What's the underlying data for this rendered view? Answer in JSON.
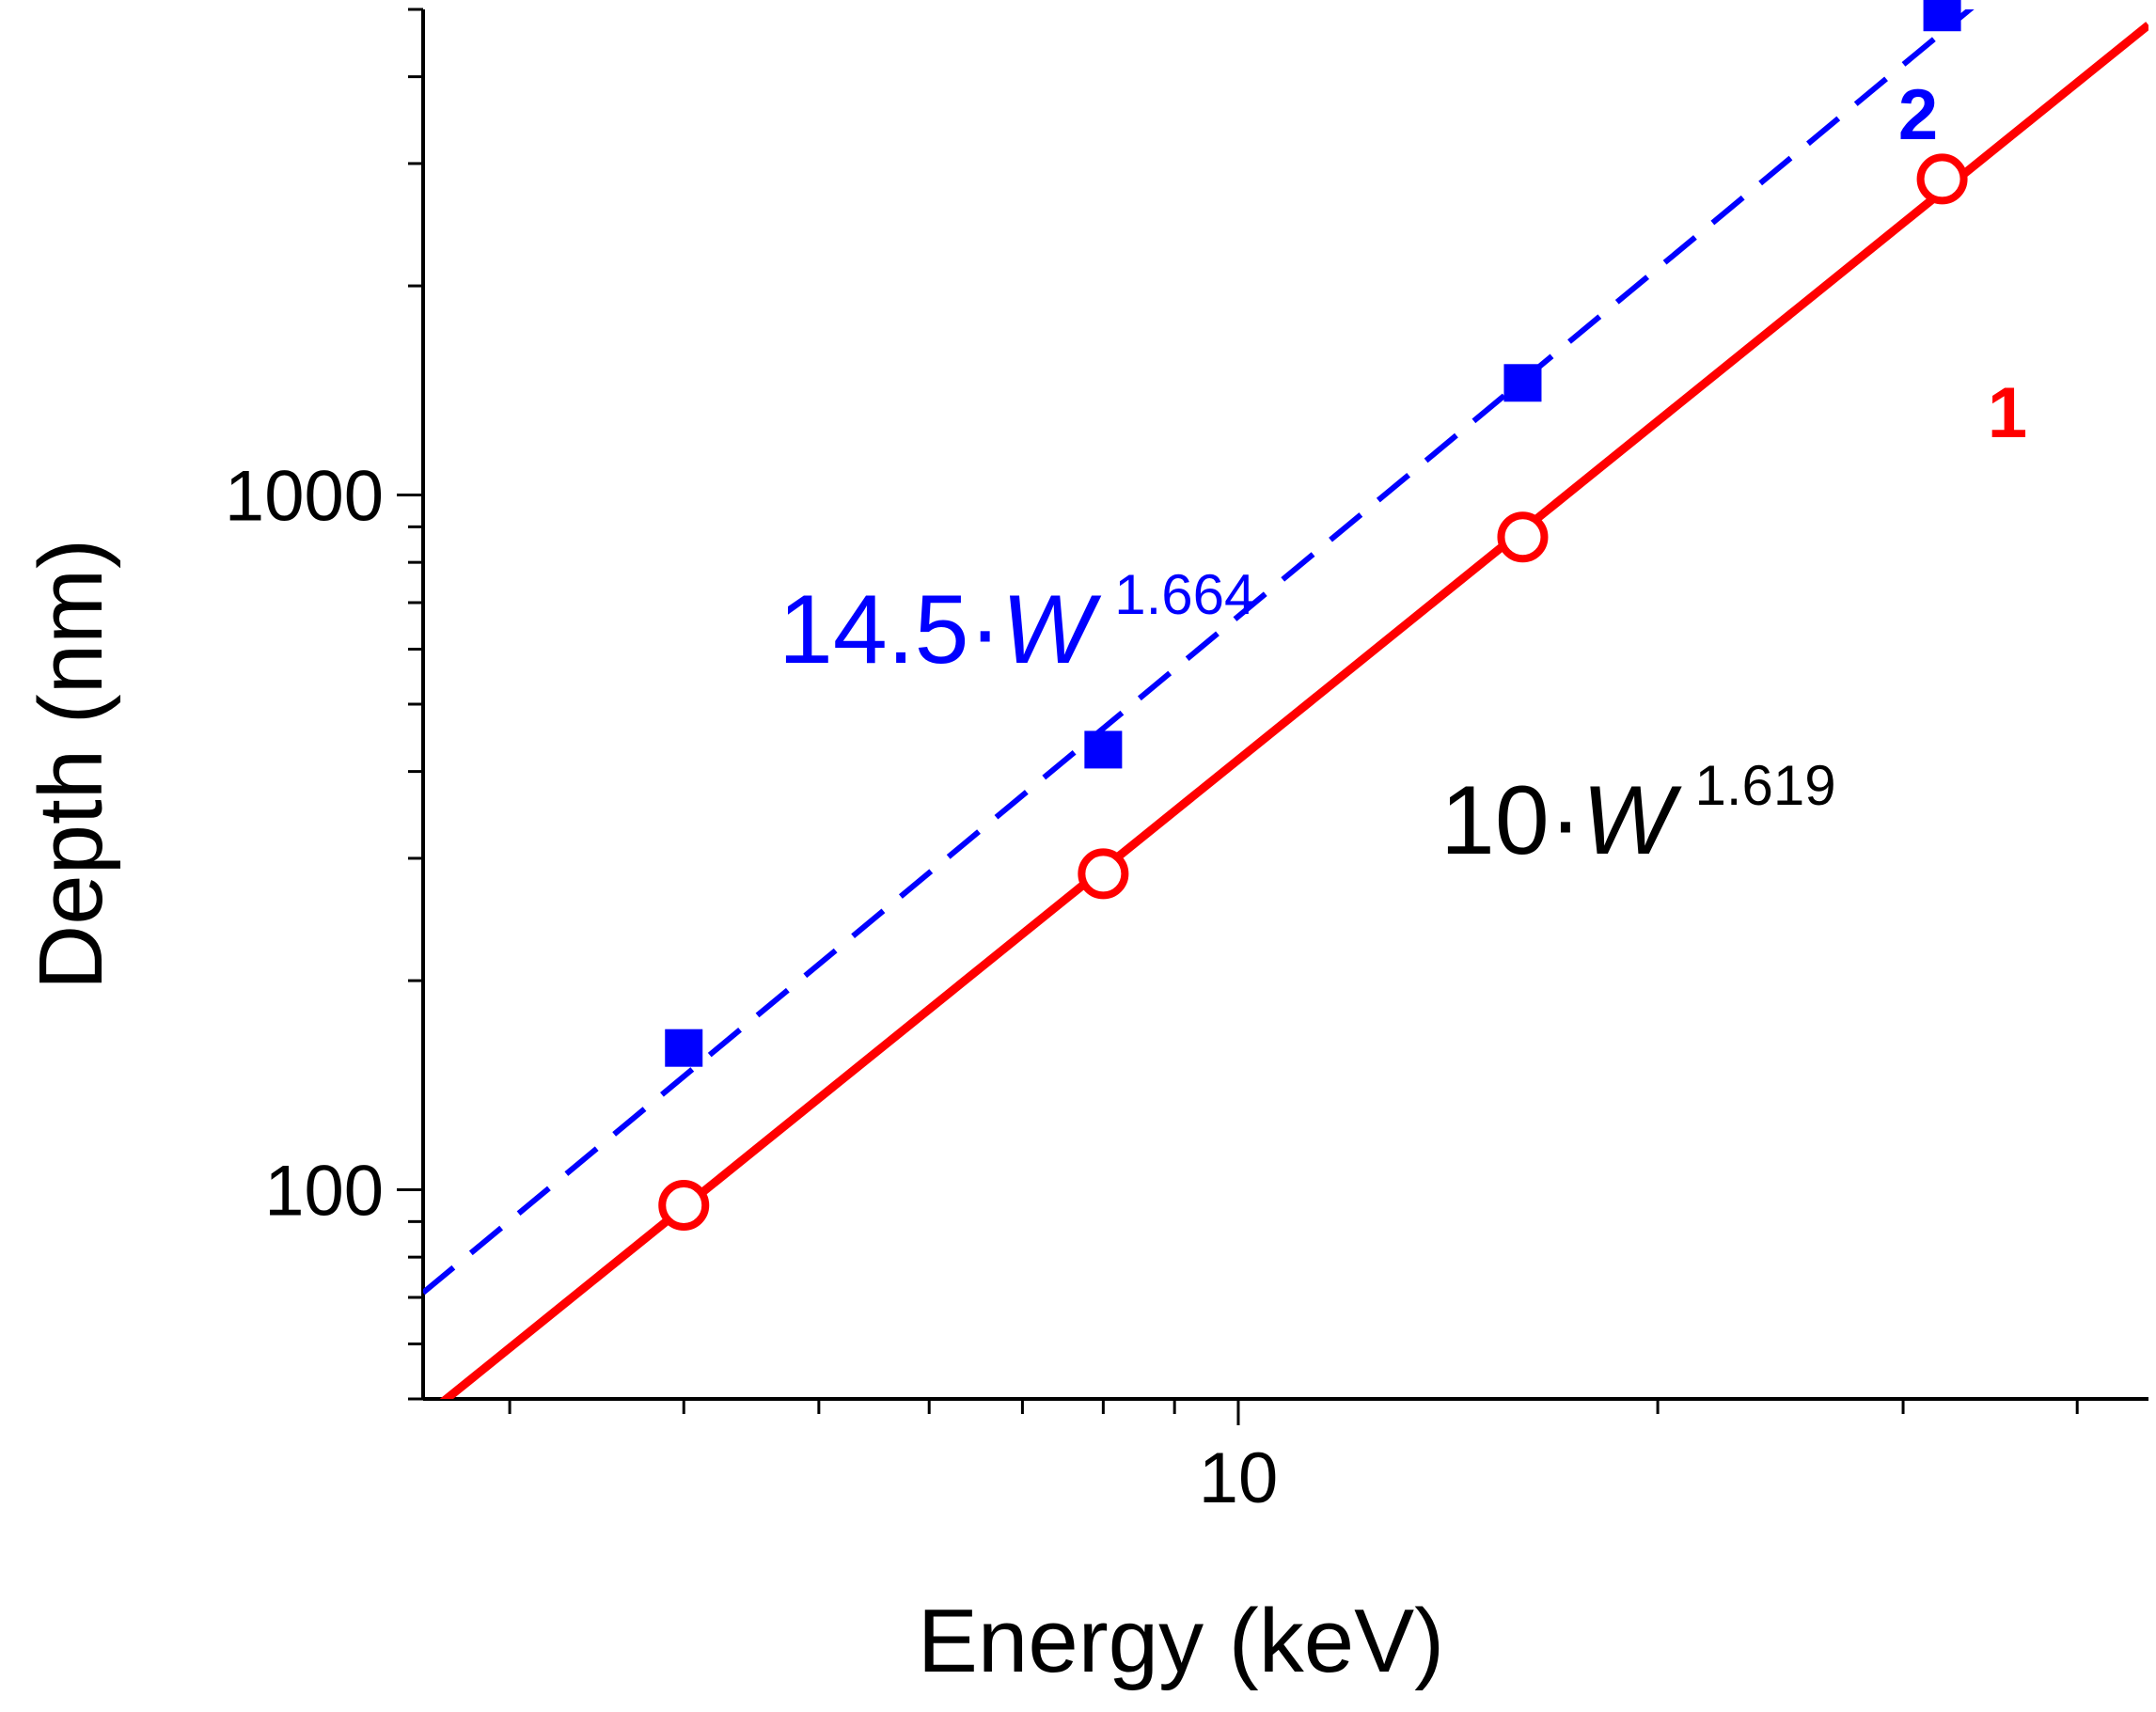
{
  "chart_data": {
    "type": "scatter",
    "title": "",
    "xlabel": "Energy (keV)",
    "ylabel": "Depth (nm)",
    "xscale": "log",
    "yscale": "log",
    "xlim": [
      2.6,
      45
    ],
    "ylim": [
      50,
      5000
    ],
    "x_ticks": [
      10
    ],
    "y_ticks": [
      100,
      1000
    ],
    "x_tick_labels": [
      "10"
    ],
    "y_tick_labels": [
      "100",
      "1000"
    ],
    "series": [
      {
        "name": "1",
        "label": "1",
        "color": "#ff0000",
        "marker": "open-circle",
        "line_style": "solid",
        "x": [
          4,
          8,
          16,
          32
        ],
        "y": [
          95,
          285,
          870,
          2850
        ]
      },
      {
        "name": "2",
        "label": "2",
        "color": "#0000ff",
        "marker": "filled-square",
        "line_style": "dashed",
        "x": [
          4,
          8,
          16,
          32
        ],
        "y": [
          160,
          430,
          1450,
          4950
        ]
      }
    ],
    "fits": [
      {
        "series": "1",
        "coefficient": 10,
        "exponent": 1.619,
        "color": "#ff0000",
        "line_style": "solid",
        "equation_base": "10·",
        "equation_var": "W",
        "equation_exp": "1.619",
        "equation_color": "#000000"
      },
      {
        "series": "2",
        "coefficient": 14.5,
        "exponent": 1.664,
        "color": "#0000ff",
        "line_style": "dashed",
        "equation_base": "14.5·",
        "equation_var": "W",
        "equation_exp": "1.664",
        "equation_color": "#0000ff"
      }
    ]
  }
}
